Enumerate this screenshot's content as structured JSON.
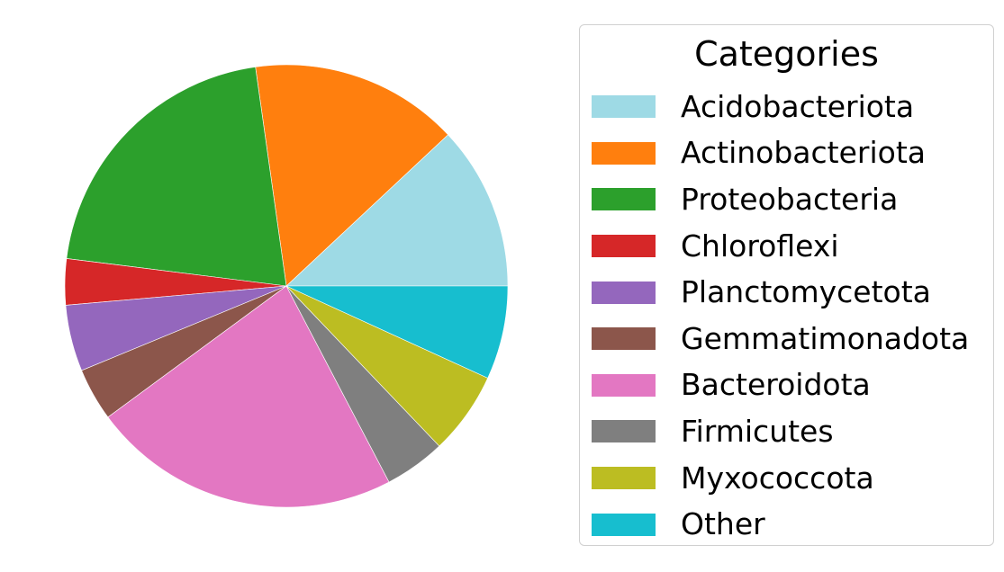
{
  "chart_data": {
    "type": "pie",
    "legend_title": "Categories",
    "legend_placement": "right",
    "start_angle_deg": 0,
    "direction": "counterclockwise",
    "slices": [
      {
        "label": "Acidobacteriota",
        "value": 12.1,
        "color": "#9edae5"
      },
      {
        "label": "Actinobacteriota",
        "value": 15.4,
        "color": "#ff7f0e"
      },
      {
        "label": "Proteobacteria",
        "value": 21.0,
        "color": "#2ca02c"
      },
      {
        "label": "Chloroflexi",
        "value": 3.4,
        "color": "#d62728"
      },
      {
        "label": "Planctomycetota",
        "value": 4.9,
        "color": "#9467bd"
      },
      {
        "label": "Gemmatimonadota",
        "value": 3.9,
        "color": "#8c564b"
      },
      {
        "label": "Bacteroidota",
        "value": 22.8,
        "color": "#e377c2"
      },
      {
        "label": "Firmicutes",
        "value": 4.5,
        "color": "#7f7f7f"
      },
      {
        "label": "Myxococcota",
        "value": 6.1,
        "color": "#bcbd22"
      },
      {
        "label": "Other",
        "value": 6.9,
        "color": "#17becf"
      }
    ]
  }
}
